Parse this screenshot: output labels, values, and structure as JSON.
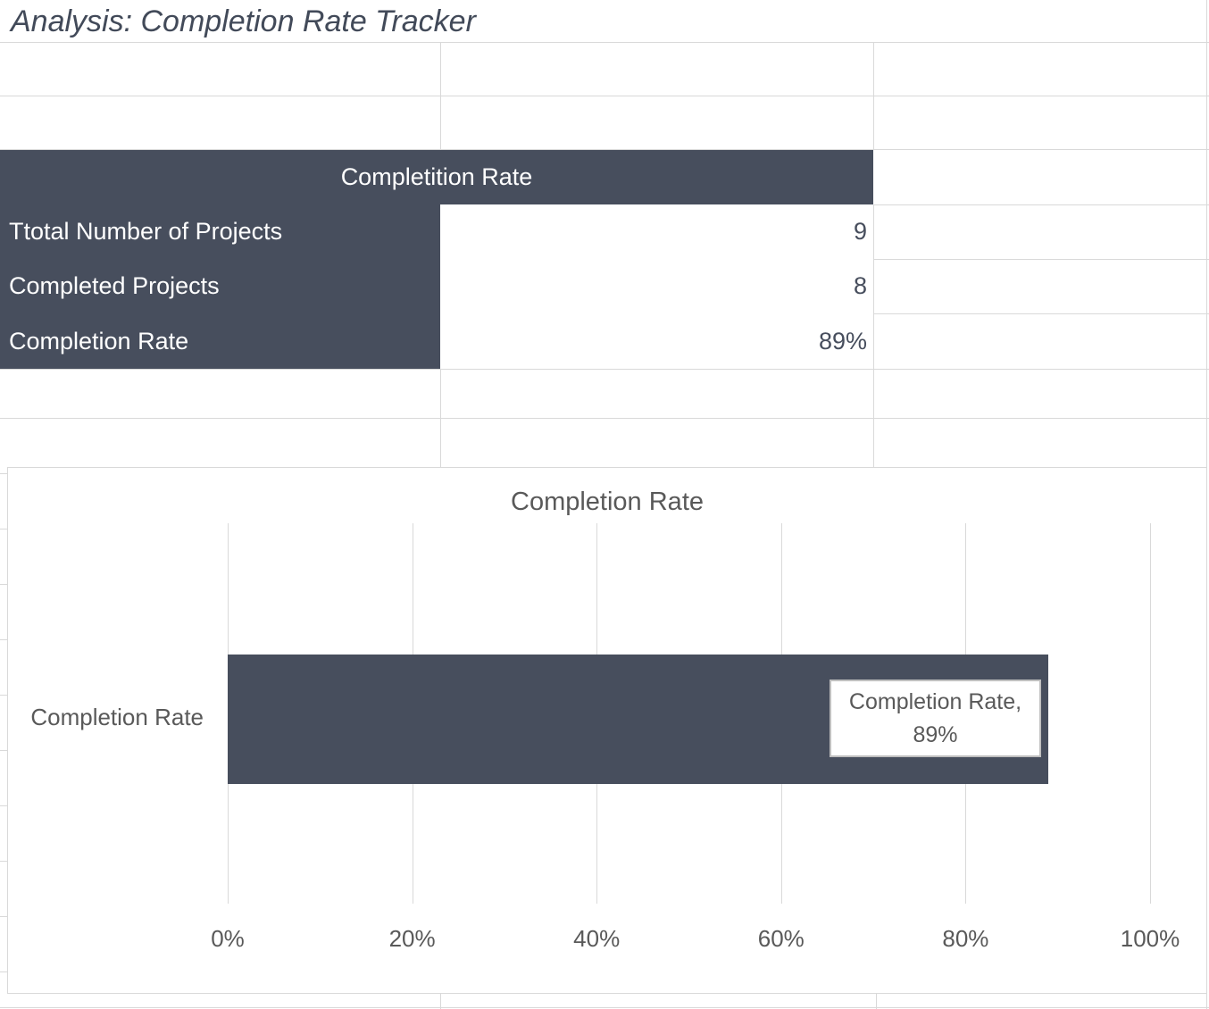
{
  "sheet": {
    "title": "Analysis: Completion Rate Tracker"
  },
  "table": {
    "header": "Completition Rate",
    "rows": [
      {
        "label": "Ttotal Number of Projects",
        "value": "9"
      },
      {
        "label": "Completed Projects",
        "value": "8"
      },
      {
        "label": "Completion Rate",
        "value": "89%"
      }
    ]
  },
  "chart_data": {
    "type": "bar",
    "orientation": "horizontal",
    "title": "Completion Rate",
    "categories": [
      "Completion Rate"
    ],
    "values": [
      0.89
    ],
    "data_labels": [
      {
        "line1": "Completion Rate,",
        "line2": "89%"
      }
    ],
    "x_ticks": [
      "0%",
      "20%",
      "40%",
      "60%",
      "80%",
      "100%"
    ],
    "xlim": [
      0,
      1
    ],
    "grid": true,
    "legend": "none",
    "bar_color": "#474E5D",
    "axis_text_color": "#595959"
  },
  "colors": {
    "accent_dark": "#474E5D",
    "grid_line": "#D9D9D9",
    "chart_text": "#595959"
  }
}
